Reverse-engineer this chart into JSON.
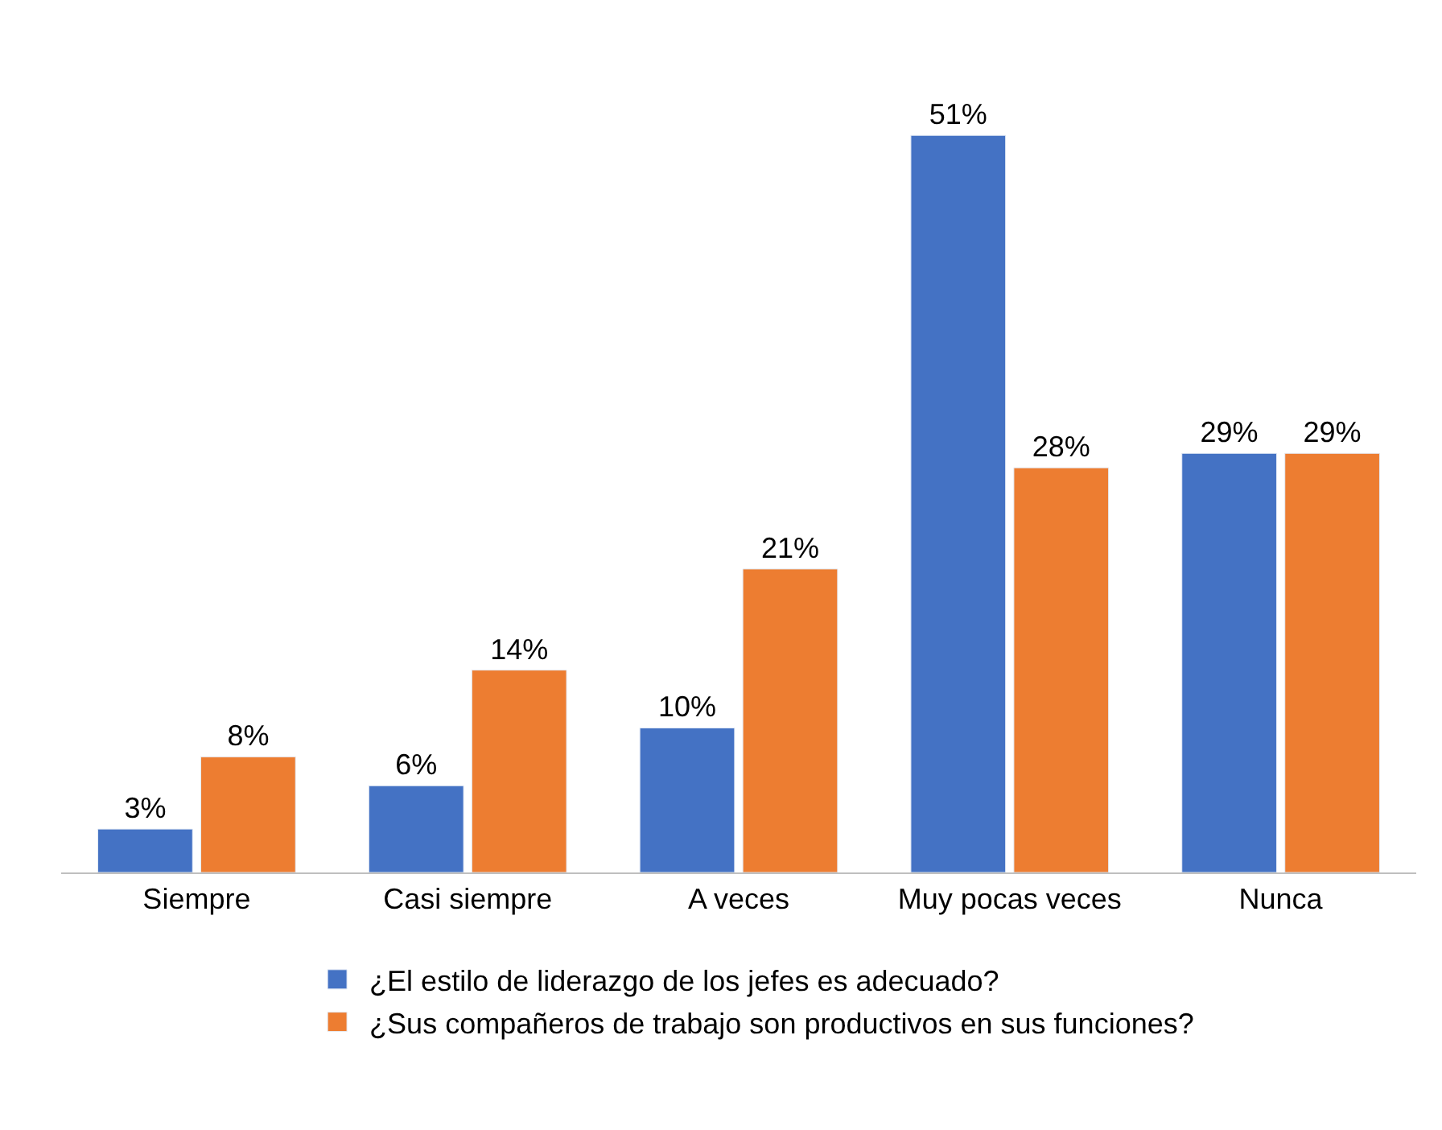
{
  "chart_data": {
    "type": "bar",
    "categories": [
      "Siempre",
      "Casi siempre",
      "A veces",
      "Muy pocas veces",
      "Nunca"
    ],
    "series": [
      {
        "name": "¿El estilo de liderazgo de los jefes es adecuado?",
        "color": "#4472c4",
        "values": [
          3,
          6,
          10,
          51,
          29
        ],
        "value_labels": [
          "3%",
          "6%",
          "10%",
          "51%",
          "29%"
        ]
      },
      {
        "name": "¿Sus compañeros de trabajo son productivos en sus funciones?",
        "color": "#ed7d31",
        "values": [
          8,
          14,
          21,
          28,
          29
        ],
        "value_labels": [
          "8%",
          "14%",
          "21%",
          "28%",
          "29%"
        ]
      }
    ],
    "legend": "bottom"
  }
}
